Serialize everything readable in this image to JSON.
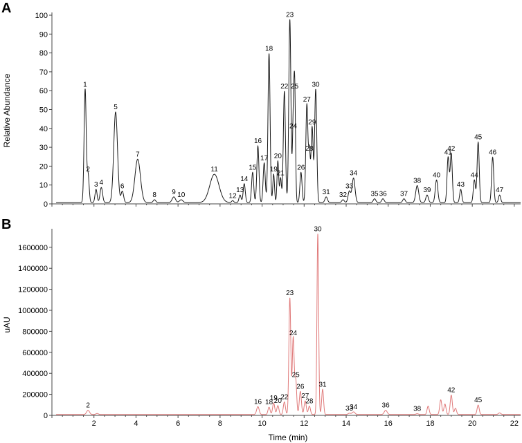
{
  "chart_data": [
    {
      "panel": "A",
      "type": "line",
      "xlabel": "",
      "ylabel": "Relative Abundance",
      "xlim": [
        0,
        22.3
      ],
      "ylim": [
        0,
        100
      ],
      "yticks": [
        0,
        10,
        20,
        30,
        40,
        50,
        60,
        70,
        80,
        90,
        100
      ],
      "color": "#1a1a1a",
      "baseline": 0.7,
      "peaks": [
        {
          "label": "1",
          "t": 1.58,
          "h": 60,
          "w": 0.05
        },
        {
          "label": "2",
          "t": 1.72,
          "h": 15,
          "w": 0.05
        },
        {
          "label": "3",
          "t": 2.1,
          "h": 7,
          "w": 0.05
        },
        {
          "label": "4",
          "t": 2.35,
          "h": 8,
          "w": 0.06
        },
        {
          "label": "5",
          "t": 3.03,
          "h": 48,
          "w": 0.09
        },
        {
          "label": "6",
          "t": 3.35,
          "h": 6,
          "w": 0.06
        },
        {
          "label": "7",
          "t": 4.08,
          "h": 23,
          "w": 0.13
        },
        {
          "label": "8",
          "t": 4.88,
          "h": 1.5,
          "w": 0.06
        },
        {
          "label": "9",
          "t": 5.8,
          "h": 3,
          "w": 0.08
        },
        {
          "label": "10",
          "t": 6.15,
          "h": 1.5,
          "w": 0.08
        },
        {
          "label": "11",
          "t": 7.73,
          "h": 15,
          "w": 0.22
        },
        {
          "label": "12",
          "t": 8.6,
          "h": 1,
          "w": 0.05
        },
        {
          "label": "13",
          "t": 8.95,
          "h": 4,
          "w": 0.05
        },
        {
          "label": "14",
          "t": 9.15,
          "h": 10,
          "w": 0.05
        },
        {
          "label": "15",
          "t": 9.55,
          "h": 16,
          "w": 0.05
        },
        {
          "label": "16",
          "t": 9.8,
          "h": 30,
          "w": 0.05
        },
        {
          "label": "17",
          "t": 10.1,
          "h": 21,
          "w": 0.05
        },
        {
          "label": "18",
          "t": 10.33,
          "h": 79,
          "w": 0.05
        },
        {
          "label": "19",
          "t": 10.55,
          "h": 15,
          "w": 0.04
        },
        {
          "label": "20",
          "t": 10.75,
          "h": 22,
          "w": 0.04
        },
        {
          "label": "21",
          "t": 10.88,
          "h": 13,
          "w": 0.04
        },
        {
          "label": "22",
          "t": 11.06,
          "h": 59,
          "w": 0.05
        },
        {
          "label": "23",
          "t": 11.32,
          "h": 97,
          "w": 0.05
        },
        {
          "label": "24",
          "t": 11.48,
          "h": 38,
          "w": 0.04
        },
        {
          "label": "25",
          "t": 11.55,
          "h": 59,
          "w": 0.04
        },
        {
          "label": "26",
          "t": 11.85,
          "h": 16,
          "w": 0.05
        },
        {
          "label": "27",
          "t": 12.13,
          "h": 52,
          "w": 0.05
        },
        {
          "label": "28",
          "t": 12.25,
          "h": 26,
          "w": 0.04
        },
        {
          "label": "29",
          "t": 12.38,
          "h": 40,
          "w": 0.05
        },
        {
          "label": "30",
          "t": 12.55,
          "h": 60,
          "w": 0.05
        },
        {
          "label": "31",
          "t": 13.05,
          "h": 3,
          "w": 0.06
        },
        {
          "label": "32",
          "t": 13.85,
          "h": 1.5,
          "w": 0.06
        },
        {
          "label": "33",
          "t": 14.15,
          "h": 6,
          "w": 0.06
        },
        {
          "label": "34",
          "t": 14.35,
          "h": 13,
          "w": 0.07
        },
        {
          "label": "35",
          "t": 15.35,
          "h": 2,
          "w": 0.06
        },
        {
          "label": "36",
          "t": 15.75,
          "h": 2,
          "w": 0.06
        },
        {
          "label": "37",
          "t": 16.75,
          "h": 2,
          "w": 0.06
        },
        {
          "label": "38",
          "t": 17.38,
          "h": 9,
          "w": 0.07
        },
        {
          "label": "39",
          "t": 17.85,
          "h": 4,
          "w": 0.06
        },
        {
          "label": "40",
          "t": 18.3,
          "h": 12,
          "w": 0.06
        },
        {
          "label": "41",
          "t": 18.85,
          "h": 24,
          "w": 0.05
        },
        {
          "label": "42",
          "t": 19.0,
          "h": 26,
          "w": 0.05
        },
        {
          "label": "43",
          "t": 19.45,
          "h": 7,
          "w": 0.05
        },
        {
          "label": "44",
          "t": 20.1,
          "h": 12,
          "w": 0.05
        },
        {
          "label": "45",
          "t": 20.28,
          "h": 32,
          "w": 0.05
        },
        {
          "label": "46",
          "t": 20.97,
          "h": 24,
          "w": 0.05
        },
        {
          "label": "47",
          "t": 21.3,
          "h": 4,
          "w": 0.05
        }
      ]
    },
    {
      "panel": "B",
      "type": "line",
      "xlabel": "Time (min)",
      "ylabel": "uAU",
      "xlim": [
        0,
        22.3
      ],
      "ylim": [
        0,
        1750000
      ],
      "yticks": [
        0,
        200000,
        400000,
        600000,
        800000,
        1000000,
        1200000,
        1400000,
        1600000
      ],
      "xticks": [
        2,
        4,
        6,
        8,
        10,
        12,
        14,
        16,
        18,
        20,
        22
      ],
      "color": "#e07a7a",
      "baseline": 8000,
      "peaks": [
        {
          "label": "2",
          "t": 1.72,
          "h": 40000,
          "w": 0.07
        },
        {
          "label": "",
          "t": 2.15,
          "h": 10000,
          "w": 0.06
        },
        {
          "label": "16",
          "t": 9.8,
          "h": 75000,
          "w": 0.06
        },
        {
          "label": "18",
          "t": 10.33,
          "h": 70000,
          "w": 0.05
        },
        {
          "label": "19",
          "t": 10.55,
          "h": 110000,
          "w": 0.05
        },
        {
          "label": "20",
          "t": 10.75,
          "h": 85000,
          "w": 0.05
        },
        {
          "label": "22",
          "t": 11.06,
          "h": 120000,
          "w": 0.05
        },
        {
          "label": "23",
          "t": 11.32,
          "h": 1110000,
          "w": 0.045
        },
        {
          "label": "24",
          "t": 11.48,
          "h": 730000,
          "w": 0.045
        },
        {
          "label": "25",
          "t": 11.6,
          "h": 330000,
          "w": 0.045
        },
        {
          "label": "26",
          "t": 11.82,
          "h": 220000,
          "w": 0.05
        },
        {
          "label": "27",
          "t": 12.05,
          "h": 130000,
          "w": 0.05
        },
        {
          "label": "28",
          "t": 12.25,
          "h": 80000,
          "w": 0.05
        },
        {
          "label": "30",
          "t": 12.65,
          "h": 1720000,
          "w": 0.04
        },
        {
          "label": "31",
          "t": 12.88,
          "h": 240000,
          "w": 0.045
        },
        {
          "label": "33",
          "t": 14.15,
          "h": 12000,
          "w": 0.06
        },
        {
          "label": "34",
          "t": 14.35,
          "h": 25000,
          "w": 0.07
        },
        {
          "label": "36",
          "t": 15.88,
          "h": 40000,
          "w": 0.07
        },
        {
          "label": "38",
          "t": 17.38,
          "h": 8000,
          "w": 0.06
        },
        {
          "label": "",
          "t": 17.9,
          "h": 80000,
          "w": 0.05
        },
        {
          "label": "",
          "t": 18.5,
          "h": 140000,
          "w": 0.05
        },
        {
          "label": "",
          "t": 18.7,
          "h": 100000,
          "w": 0.05
        },
        {
          "label": "42",
          "t": 19.0,
          "h": 185000,
          "w": 0.05
        },
        {
          "label": "",
          "t": 19.2,
          "h": 60000,
          "w": 0.05
        },
        {
          "label": "45",
          "t": 20.28,
          "h": 90000,
          "w": 0.05
        },
        {
          "label": "",
          "t": 21.3,
          "h": 15000,
          "w": 0.06
        }
      ]
    }
  ],
  "panel_labels": [
    "A",
    "B"
  ]
}
